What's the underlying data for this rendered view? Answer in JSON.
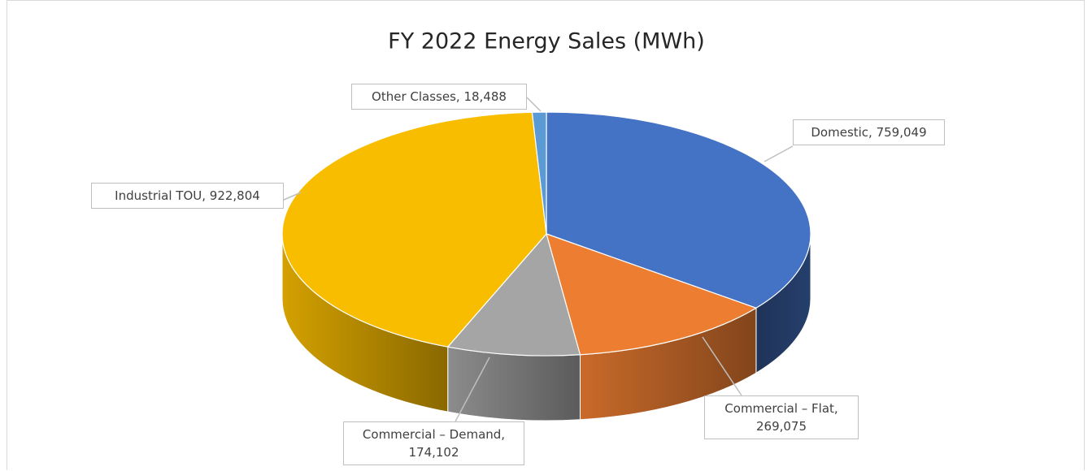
{
  "chart_data": {
    "type": "pie",
    "title": "FY 2022 Energy Sales (MWh)",
    "values": [
      759049,
      269075,
      174102,
      922804,
      18488
    ],
    "value_labels": [
      "Domestic, 759,049",
      "Commercial – Flat, 269,075",
      "Commercial – Demand, 174,102",
      "Industrial TOU, 922,804",
      "Other Classes, 18,488"
    ],
    "colors": [
      "#4472c4",
      "#ed7d31",
      "#a5a5a5",
      "#f9bd00",
      "#5b9bd5"
    ],
    "three_d": true
  }
}
